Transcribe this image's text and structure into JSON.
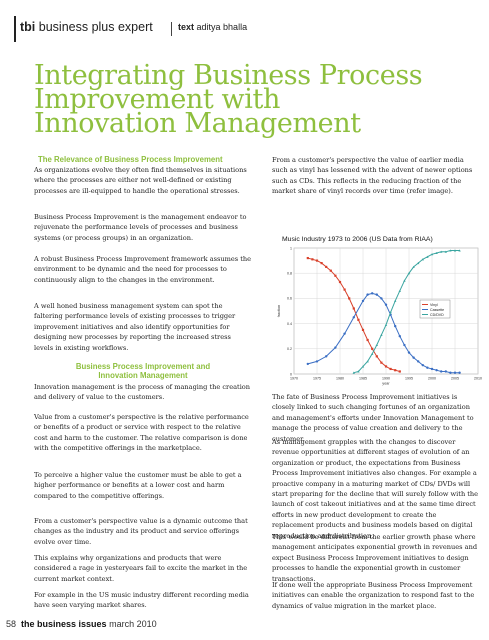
{
  "header": {
    "section_brand": "tbi",
    "section_title": "business plus expert",
    "author_label": "text",
    "author_name": "aditya bhalla"
  },
  "article": {
    "title_lines": [
      "Integrating Business Process",
      "Improvement with",
      "Innovation Management"
    ],
    "subhead_1": "The Relevance of Business Process Improvement",
    "para_1": "As organizations evolve they often find themselves in situations where the processes are either not well-defined or existing processes are ill-equipped to handle the operational stresses.",
    "para_2": "Business Process Improvement is the management endeavor to rejuvenate the performance levels of processes and business systems (or process groups) in an organization.",
    "para_3": "A robust Business Process Improvement framework assumes the environment to be dynamic and the need for processes to continuously align to the changes in the environment.",
    "para_4": "A well honed business management system can spot the faltering performance levels of existing processes to trigger improvement initiatives and also identify opportunities for designing new processes by reporting the increased stress levels in existing workflows.",
    "subhead_2_line1": "Business Process Improvement and",
    "subhead_2_line2": "Innovation Management",
    "para_5": "Innovation management is the process of managing the creation and delivery of value to the customers.",
    "para_6": "Value from a customer's perspective is the relative performance or benefits of a product or service with respect to the relative cost and harm to the customer. The relative comparison is done with the competitive offerings in the marketplace.",
    "para_7": "To perceive a higher value the customer must be able to get a higher performance or benefits at a lower cost and harm compared to the competitive offerings.",
    "para_8": "From a customer's perspective value is a dynamic outcome that changes as the industry and its product and service offerings evolve over time.",
    "para_9": "This explains why organizations and products that were considered a rage in yesteryears fail to excite the market in the current market context.",
    "para_10": "For example in the US music industry different recording media have seen varying market shares.",
    "para_r1": "From a customer's perspective the value of earlier media such as vinyl has lessened with the advent of newer options such as CDs. This reflects in the reducing fraction of the market share of vinyl records over time (refer image).",
    "para_r2": "The fate of Business Process Improvement initiatives is closely linked to such changing fortunes of an organization and management's efforts under Innovation Management to manage the process of value creation and delivery to the customer.",
    "para_r3": "As management grapples with the changes to discover revenue opportunities at different stages of evolution of an organization or product, the expectations from Business Process Improvement initiatives also changes. For example a proactive company in a maturing market of CDs/ DVDs will start preparing for the decline that will surely follow with the launch of cost takeout initiatives and at the same time direct efforts in new product development to create the replacement products and business models based on digital reproduction and distribution.",
    "para_r4": "This would be different from the earlier growth phase where management anticipates exponential growth in revenues and expect Business Process Improvement initiatives to design processes to handle the exponential growth in customer transactions.",
    "para_r5": "If done well the appropriate Business Process Improvement initiatives can enable the organization to respond fast to the dynamics of value migration in the market place."
  },
  "chart_data": {
    "type": "line",
    "title": "Music Industry 1973 to 2006 (US Data from RIAA)",
    "xlabel": "year",
    "ylabel": "fraction",
    "xlim": [
      1970,
      2010
    ],
    "ylim": [
      0,
      1
    ],
    "x_ticks": [
      "1970",
      "1975",
      "1980",
      "1985",
      "1990",
      "1995",
      "2000",
      "2005",
      "2010"
    ],
    "y_ticks": [
      "0",
      "0.2",
      "0.4",
      "0.6",
      "0.8",
      "1"
    ],
    "grid": true,
    "legend_position": "center-right",
    "colors": {
      "Vinyl": "#d9412b",
      "Cassette": "#3b6fc4",
      "CD/DVD": "#3aa5a0"
    },
    "series": [
      {
        "name": "Vinyl",
        "x": [
          1973,
          1974,
          1975,
          1976,
          1977,
          1978,
          1979,
          1980,
          1981,
          1982,
          1983,
          1984,
          1985,
          1986,
          1987,
          1988,
          1989,
          1990,
          1991,
          1992,
          1993
        ],
        "y": [
          0.92,
          0.91,
          0.9,
          0.88,
          0.85,
          0.82,
          0.78,
          0.73,
          0.67,
          0.6,
          0.52,
          0.43,
          0.35,
          0.27,
          0.2,
          0.14,
          0.09,
          0.06,
          0.04,
          0.03,
          0.02
        ]
      },
      {
        "name": "Cassette",
        "x": [
          1973,
          1975,
          1977,
          1979,
          1981,
          1983,
          1985,
          1986,
          1987,
          1988,
          1989,
          1990,
          1991,
          1992,
          1993,
          1994,
          1995,
          1996,
          1997,
          1998,
          1999,
          2000,
          2001,
          2002,
          2003,
          2004,
          2005,
          2006
        ],
        "y": [
          0.08,
          0.1,
          0.14,
          0.21,
          0.32,
          0.45,
          0.58,
          0.63,
          0.64,
          0.63,
          0.6,
          0.55,
          0.47,
          0.38,
          0.3,
          0.23,
          0.17,
          0.13,
          0.1,
          0.07,
          0.05,
          0.04,
          0.03,
          0.02,
          0.02,
          0.01,
          0.01,
          0.01
        ]
      },
      {
        "name": "CD/DVD",
        "x": [
          1983,
          1984,
          1985,
          1986,
          1987,
          1988,
          1989,
          1990,
          1991,
          1992,
          1993,
          1994,
          1995,
          1996,
          1997,
          1998,
          1999,
          2000,
          2001,
          2002,
          2003,
          2004,
          2005,
          2006
        ],
        "y": [
          0.01,
          0.02,
          0.06,
          0.1,
          0.16,
          0.23,
          0.31,
          0.39,
          0.49,
          0.58,
          0.66,
          0.74,
          0.8,
          0.85,
          0.88,
          0.91,
          0.93,
          0.95,
          0.96,
          0.97,
          0.97,
          0.98,
          0.98,
          0.98
        ]
      }
    ]
  },
  "footer": {
    "page_number": "58",
    "publication": "the business issues",
    "issue_date": "march 2010"
  }
}
